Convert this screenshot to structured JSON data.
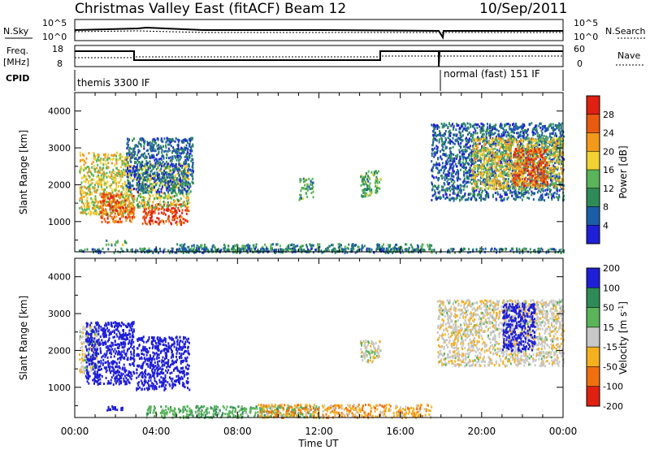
{
  "header": {
    "title": "Christmas Valley East (fitACF)",
    "beam": "Beam 12",
    "date": "10/Sep/2011"
  },
  "top_panels": {
    "nsky_label": "N.Sky",
    "nsky_ticks": [
      "10^5",
      "10^0"
    ],
    "nsearch_label": "N.Search",
    "nsearch_ticks": [
      "10^5",
      "10^0"
    ],
    "freq_label_1": "Freq.",
    "freq_label_2": "[MHz]",
    "freq_ticks": [
      "18",
      "8"
    ],
    "nave_label": "Nave",
    "nave_ticks": [
      "60",
      "0"
    ],
    "cpid_label": "CPID",
    "cpid_1": "themis 3300 IF",
    "cpid_2": "normal (fast) 151 IF"
  },
  "colors": {
    "power": [
      "#1f1fd6",
      "#1c5ea6",
      "#2e8b57",
      "#5ab45a",
      "#f2d233",
      "#f39a1a",
      "#e85a10",
      "#e02010"
    ],
    "velocity": [
      "#e02010",
      "#f07010",
      "#f5b020",
      "#c8c8c8",
      "#5ab45a",
      "#2e8b57",
      "#1f1fd6"
    ]
  },
  "chart_data": [
    {
      "type": "heatmap",
      "panel": "power",
      "xlabel": "Time UT",
      "ylabel": "Slant Range [km]",
      "xticks": [
        "00:00",
        "04:00",
        "08:00",
        "12:00",
        "16:00",
        "20:00",
        "00:00"
      ],
      "yticks": [
        "1000",
        "2000",
        "3000",
        "4000"
      ],
      "xlim": [
        0,
        24
      ],
      "ylim": [
        180,
        4500
      ],
      "colorbar_label": "Power [dB]",
      "colorbar_ticks": [
        "28",
        "24",
        "20",
        "16",
        "12",
        "8",
        "4"
      ],
      "regions": [
        {
          "t0": 0.2,
          "t1": 2.9,
          "r0": 1200,
          "r1": 2900,
          "level": 0.55
        },
        {
          "t0": 1.2,
          "t1": 2.9,
          "r0": 1000,
          "r1": 1800,
          "level": 0.8
        },
        {
          "t0": 3.3,
          "t1": 5.6,
          "r0": 950,
          "r1": 1500,
          "level": 0.9
        },
        {
          "t0": 3.0,
          "t1": 5.6,
          "r0": 1400,
          "r1": 2600,
          "level": 0.5
        },
        {
          "t0": 2.5,
          "t1": 5.8,
          "r0": 1800,
          "r1": 3300,
          "level": 0.2
        },
        {
          "t0": 11.0,
          "t1": 11.7,
          "r0": 1600,
          "r1": 2200,
          "level": 0.35
        },
        {
          "t0": 14.0,
          "t1": 15.0,
          "r0": 1700,
          "r1": 2400,
          "level": 0.4
        },
        {
          "t0": 17.5,
          "t1": 24.0,
          "r0": 1600,
          "r1": 3700,
          "level": 0.2
        },
        {
          "t0": 19.5,
          "t1": 24.0,
          "r0": 1900,
          "r1": 3300,
          "level": 0.55
        },
        {
          "t0": 21.5,
          "t1": 23.2,
          "r0": 2000,
          "r1": 3000,
          "level": 0.85
        },
        {
          "t0": 1.5,
          "t1": 2.5,
          "r0": 380,
          "r1": 520,
          "level": 0.35
        },
        {
          "t0": 5.0,
          "t1": 17.5,
          "r0": 200,
          "r1": 420,
          "level": 0.3
        },
        {
          "t0": 0.2,
          "t1": 24.0,
          "r0": 180,
          "r1": 300,
          "level": 0.25
        }
      ]
    },
    {
      "type": "heatmap",
      "panel": "velocity",
      "xlabel": "Time UT",
      "ylabel": "Slant Range [km]",
      "xticks": [
        "00:00",
        "04:00",
        "08:00",
        "12:00",
        "16:00",
        "20:00",
        "00:00"
      ],
      "yticks": [
        "1000",
        "2000",
        "3000",
        "4000"
      ],
      "xlim": [
        0,
        24
      ],
      "ylim": [
        180,
        4500
      ],
      "colorbar_label": "Velocity [m s^-1]",
      "colorbar_ticks": [
        "200",
        "100",
        "50",
        "15",
        "-15",
        "-50",
        "-100",
        "-200"
      ],
      "regions": [
        {
          "t0": 0.2,
          "t1": 1.1,
          "r0": 1400,
          "r1": 2700,
          "vel": 10
        },
        {
          "t0": 0.5,
          "t1": 2.9,
          "r0": 1100,
          "r1": 2800,
          "vel": 220
        },
        {
          "t0": 3.0,
          "t1": 5.6,
          "r0": 950,
          "r1": 2400,
          "vel": 230
        },
        {
          "t0": 14.0,
          "t1": 15.0,
          "r0": 1700,
          "r1": 2300,
          "vel": 5
        },
        {
          "t0": 17.8,
          "t1": 24.0,
          "r0": 1600,
          "r1": 3400,
          "vel": 0
        },
        {
          "t0": 21.0,
          "t1": 22.6,
          "r0": 2000,
          "r1": 3300,
          "vel": 230
        },
        {
          "t0": 1.5,
          "t1": 2.5,
          "r0": 400,
          "r1": 520,
          "vel": 210
        },
        {
          "t0": 3.5,
          "t1": 12.0,
          "r0": 200,
          "r1": 520,
          "vel": 60
        },
        {
          "t0": 9.0,
          "t1": 17.5,
          "r0": 200,
          "r1": 560,
          "vel": -40
        }
      ]
    }
  ]
}
